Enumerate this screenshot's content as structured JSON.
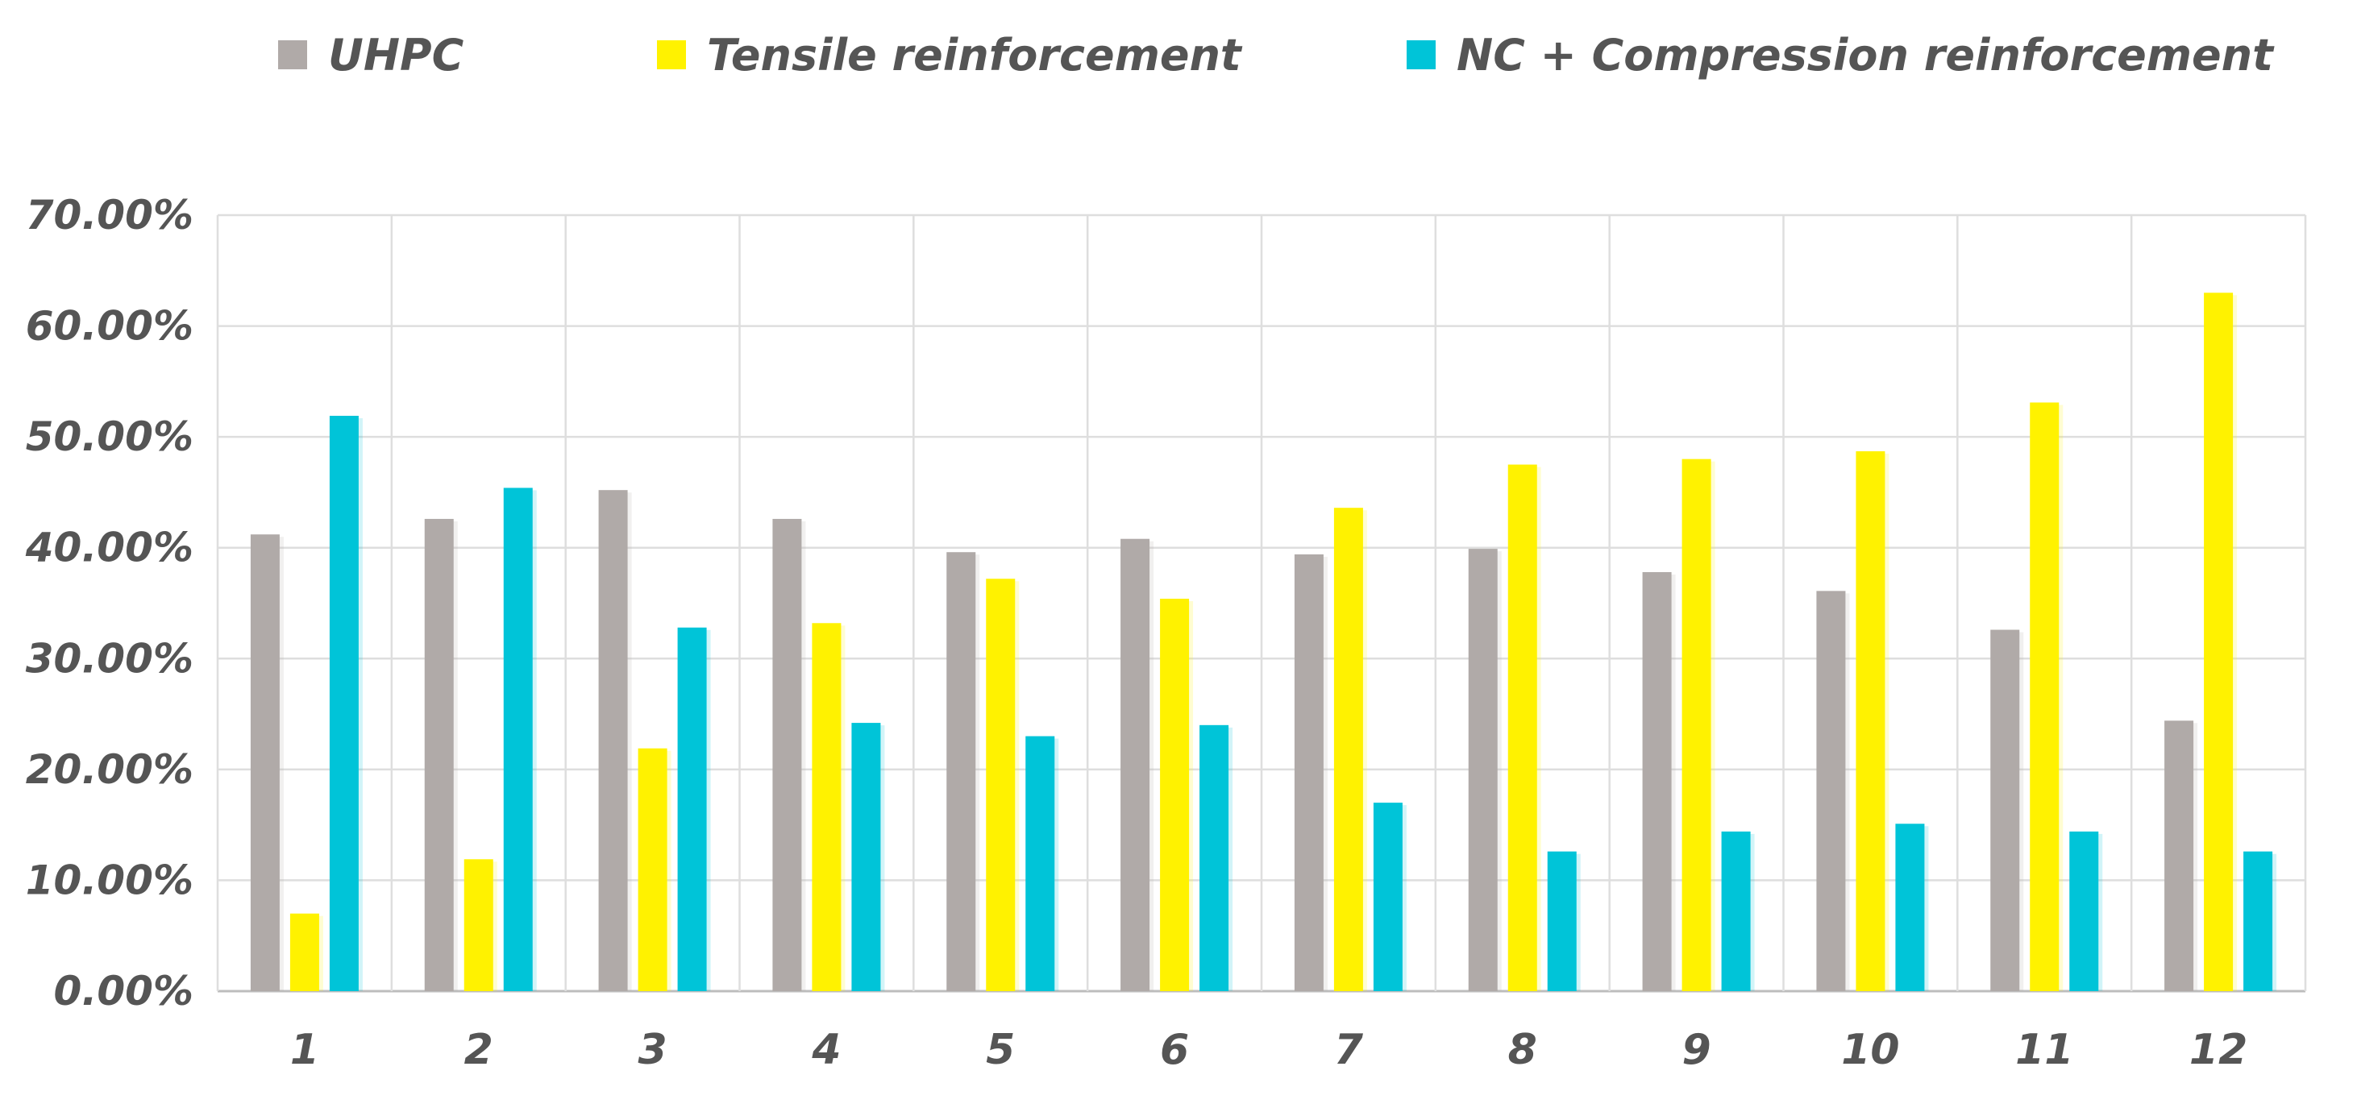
{
  "chart_data": {
    "type": "bar",
    "title": "",
    "xlabel": "",
    "ylabel": "",
    "categories": [
      "1",
      "2",
      "3",
      "4",
      "5",
      "6",
      "7",
      "8",
      "9",
      "10",
      "11",
      "12"
    ],
    "series": [
      {
        "name": "UHPC",
        "color": "#b0aaa8",
        "values": [
          41.2,
          42.6,
          45.2,
          42.6,
          39.6,
          40.8,
          39.4,
          39.9,
          37.8,
          36.1,
          32.6,
          24.4
        ]
      },
      {
        "name": "Tensile reinforcement",
        "color": "#fff200",
        "values": [
          7.0,
          11.9,
          21.9,
          33.2,
          37.2,
          35.4,
          43.6,
          47.5,
          48.0,
          48.7,
          53.1,
          63.0
        ]
      },
      {
        "name": "NC + Compression reinforcement",
        "color": "#00c4d8",
        "values": [
          51.9,
          45.4,
          32.8,
          24.2,
          23.0,
          24.0,
          17.0,
          12.6,
          14.4,
          15.1,
          14.4,
          12.6
        ]
      }
    ],
    "ylim": [
      0,
      70
    ],
    "yticks": [
      0,
      10,
      20,
      30,
      40,
      50,
      60,
      70
    ],
    "ytick_labels": [
      "0.00%",
      "10.00%",
      "20.00%",
      "30.00%",
      "40.00%",
      "50.00%",
      "60.00%",
      "70.00%"
    ],
    "grid": true,
    "legend_position": "top"
  }
}
